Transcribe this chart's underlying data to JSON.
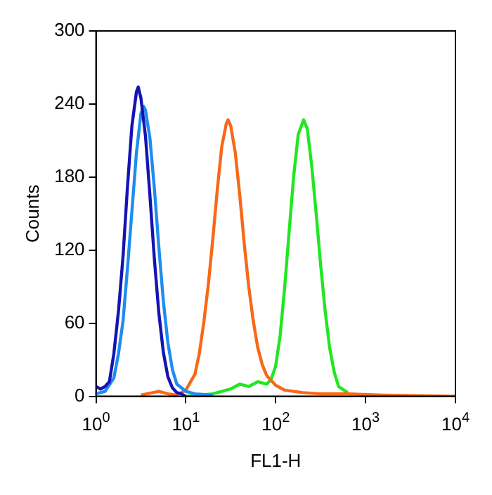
{
  "chart_data": {
    "type": "line",
    "xlabel": "FL1-H",
    "ylabel": "Counts",
    "log": "x",
    "xlim": [
      1,
      10000
    ],
    "xticks": [
      {
        "value": 1,
        "label": "10$^{0}$"
      },
      {
        "value": 10,
        "label": "10$^{1}$"
      },
      {
        "value": 100,
        "label": "10$^{2}$"
      },
      {
        "value": 1000,
        "label": "10$^{3}$"
      },
      {
        "value": 10000,
        "label": "10$^{4}$"
      }
    ],
    "ylim": [
      0,
      300
    ],
    "yticks": [
      0,
      60,
      120,
      180,
      240,
      300
    ],
    "grid": false,
    "legend": false,
    "marker": "none",
    "line_style": "solid",
    "series": [
      {
        "color": "#1414b4",
        "x": [
          1,
          1.12,
          1.26,
          1.41,
          1.58,
          1.78,
          2.0,
          2.24,
          2.51,
          2.82,
          2.95,
          3.16,
          3.55,
          3.98,
          4.47,
          5.01,
          5.62,
          6.31,
          7.08,
          7.94,
          8.91,
          10
        ],
        "values": [
          8,
          6,
          8,
          12,
          35,
          70,
          115,
          172,
          222,
          250,
          254,
          245,
          214,
          165,
          112,
          68,
          36,
          16,
          7,
          3,
          2,
          0
        ]
      },
      {
        "color": "#1e8cf0",
        "x": [
          1,
          1.26,
          1.58,
          1.78,
          2.0,
          2.24,
          2.51,
          2.82,
          3.16,
          3.39,
          3.55,
          3.98,
          4.47,
          5.01,
          5.62,
          6.31,
          7.08,
          7.94,
          10,
          12.6,
          20
        ],
        "values": [
          2,
          4,
          15,
          35,
          62,
          105,
          152,
          200,
          232,
          238,
          235,
          212,
          170,
          122,
          78,
          44,
          22,
          10,
          4,
          2,
          1
        ]
      },
      {
        "color": "#f86818",
        "x": [
          3.16,
          5.01,
          6.31,
          7.94,
          10,
          12.6,
          14.1,
          15.8,
          17.8,
          20,
          22.4,
          25.1,
          28.2,
          29.5,
          31.6,
          35.5,
          39.8,
          44.7,
          50.1,
          56.2,
          63.1,
          70.8,
          79.4,
          100,
          126,
          200,
          316,
          631,
          1585,
          10000
        ],
        "values": [
          1,
          4,
          2,
          1,
          5,
          18,
          35,
          60,
          92,
          130,
          170,
          205,
          224,
          227,
          222,
          200,
          165,
          125,
          90,
          62,
          40,
          26,
          17,
          9,
          5,
          3,
          2,
          2,
          1,
          0
        ]
      },
      {
        "color": "#22e622",
        "x": [
          10,
          20,
          31.6,
          39.8,
          50.1,
          63.1,
          79.4,
          89.1,
          100,
          112,
          126,
          141,
          158,
          178,
          204,
          224,
          251,
          282,
          316,
          355,
          398,
          447,
          501,
          631
        ],
        "values": [
          0,
          2,
          6,
          10,
          8,
          12,
          10,
          14,
          25,
          50,
          90,
          135,
          180,
          215,
          227,
          220,
          190,
          150,
          108,
          70,
          40,
          20,
          8,
          3
        ]
      }
    ]
  }
}
